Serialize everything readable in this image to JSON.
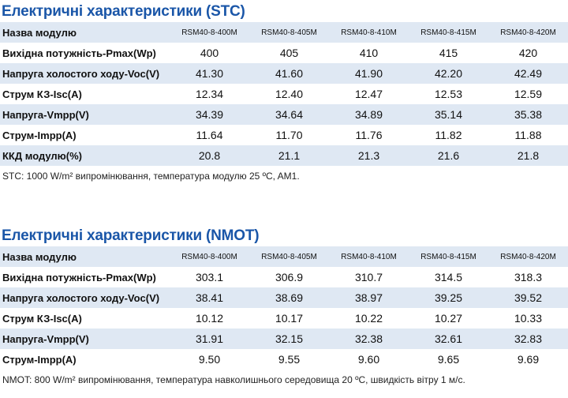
{
  "sections": [
    {
      "title": "Електричні характеристики (STC)",
      "header": [
        "Назва модулю",
        "RSM40-8-400M",
        "RSM40-8-405M",
        "RSM40-8-410M",
        "RSM40-8-415M",
        "RSM40-8-420M"
      ],
      "rows": [
        [
          "Вихідна потужність-Pmax(Wp)",
          "400",
          "405",
          "410",
          "415",
          "420"
        ],
        [
          "Напруга холостого ходу-Voc(V)",
          "41.30",
          "41.60",
          "41.90",
          "42.20",
          "42.49"
        ],
        [
          "Струм КЗ-Isc(A)",
          "12.34",
          "12.40",
          "12.47",
          "12.53",
          "12.59"
        ],
        [
          "Напруга-Vmpp(V)",
          "34.39",
          "34.64",
          "34.89",
          "35.14",
          "35.38"
        ],
        [
          "Струм-Impp(A)",
          "11.64",
          "11.70",
          "11.76",
          "11.82",
          "11.88"
        ],
        [
          "ККД модулю(%)",
          "20.8",
          "21.1",
          "21.3",
          "21.6",
          "21.8"
        ]
      ],
      "note": "STC:  1000 W/m² випромінювання, температура модулю 25 ºC, AM1."
    },
    {
      "title": "Електричні характеристики (NMOT)",
      "header": [
        "Назва модулю",
        "RSM40-8-400M",
        "RSM40-8-405M",
        "RSM40-8-410M",
        "RSM40-8-415M",
        "RSM40-8-420M"
      ],
      "rows": [
        [
          "Вихідна потужність-Pmax(Wp)",
          "303.1",
          "306.9",
          "310.7",
          "314.5",
          "318.3"
        ],
        [
          "Напруга холостого ходу-Voc(V)",
          "38.41",
          "38.69",
          "38.97",
          "39.25",
          "39.52"
        ],
        [
          "Струм КЗ-Isc(A)",
          "10.12",
          "10.17",
          "10.22",
          "10.27",
          "10.33"
        ],
        [
          "Напруга-Vmpp(V)",
          "31.91",
          "32.15",
          "32.38",
          "32.61",
          "32.83"
        ],
        [
          "Струм-Impp(A)",
          "9.50",
          "9.55",
          "9.60",
          "9.65",
          "9.69"
        ]
      ],
      "note": "NMOT: 800 W/m² випромінювання, температура навколишнього середовища 20 ºC, швидкість вітру 1 м/с."
    }
  ]
}
